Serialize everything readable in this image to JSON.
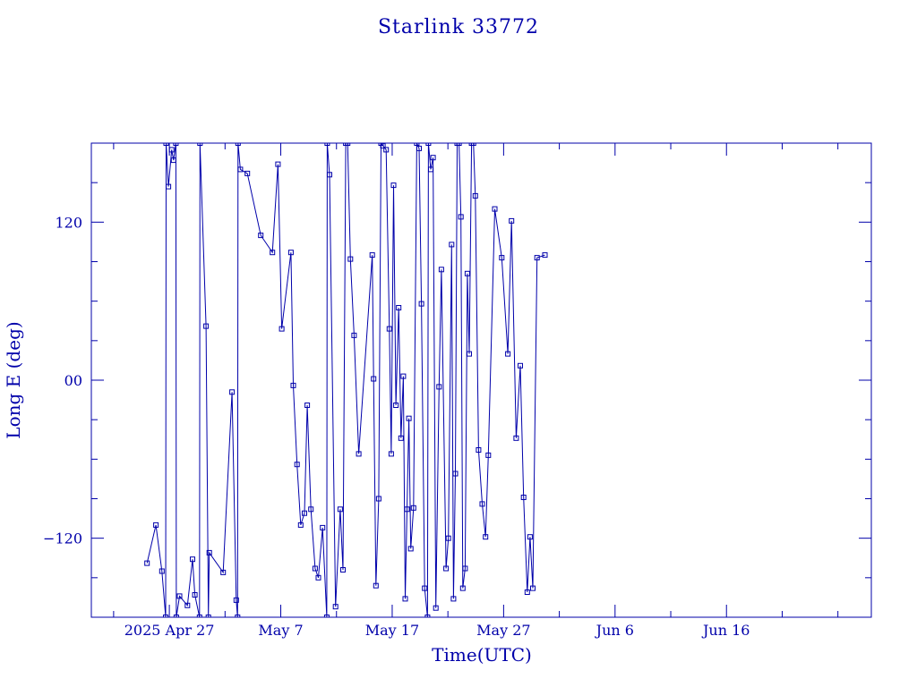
{
  "chart_data": {
    "type": "line",
    "title": "Starlink 33772",
    "xlabel": "Time(UTC)",
    "ylabel": "Long E (deg)",
    "ylim": [
      -180,
      180
    ],
    "xlim": [
      "2025-04-20",
      "2025-06-29"
    ],
    "x_ticks": [
      {
        "date": "2025-04-27",
        "label": "2025 Apr 27"
      },
      {
        "date": "2025-05-07",
        "label": "May  7"
      },
      {
        "date": "2025-05-17",
        "label": "May 17"
      },
      {
        "date": "2025-05-27",
        "label": "May 27"
      },
      {
        "date": "2025-06-06",
        "label": "Jun  6"
      },
      {
        "date": "2025-06-16",
        "label": "Jun 16"
      }
    ],
    "y_ticks": [
      {
        "value": 120,
        "label": "120"
      },
      {
        "value": 0,
        "label": "00"
      },
      {
        "value": -120,
        "label": "−120"
      }
    ],
    "grid": false,
    "line_color": "#0000aa",
    "series": [
      {
        "points": [
          [
            "2025-04-25 00:00",
            -139
          ],
          [
            "2025-04-25 19:00",
            -110
          ],
          [
            "2025-04-26 08:00",
            -145
          ],
          [
            "2025-04-26 16:00",
            -180
          ],
          [
            "2025-04-26 17:00",
            180
          ],
          [
            "2025-04-26 22:00",
            147
          ],
          [
            "2025-04-27 05:00",
            175
          ],
          [
            "2025-04-27 09:00",
            167
          ],
          [
            "2025-04-27 14:00",
            180
          ],
          [
            "2025-04-27 15:00",
            -180
          ],
          [
            "2025-04-27 22:00",
            -164
          ],
          [
            "2025-04-28 15:00",
            -171
          ],
          [
            "2025-04-29 02:00",
            -136
          ],
          [
            "2025-04-29 07:00",
            -163
          ],
          [
            "2025-04-29 17:00",
            -180
          ],
          [
            "2025-04-29 18:00",
            180
          ],
          [
            "2025-04-30 07:00",
            41
          ],
          [
            "2025-04-30 12:00",
            -180
          ],
          [
            "2025-04-30 14:00",
            -131
          ],
          [
            "2025-05-01 20:00",
            -146
          ],
          [
            "2025-05-02 15:00",
            -9
          ],
          [
            "2025-05-03 00:00",
            -167
          ],
          [
            "2025-05-03 03:00",
            -180
          ],
          [
            "2025-05-03 04:00",
            180
          ],
          [
            "2025-05-03 09:00",
            160
          ],
          [
            "2025-05-04 00:00",
            157
          ],
          [
            "2025-05-05 05:00",
            110
          ],
          [
            "2025-05-06 06:00",
            97
          ],
          [
            "2025-05-06 18:00",
            164
          ],
          [
            "2025-05-07 02:00",
            39
          ],
          [
            "2025-05-07 22:00",
            97
          ],
          [
            "2025-05-08 03:00",
            -4
          ],
          [
            "2025-05-08 11:00",
            -64
          ],
          [
            "2025-05-08 19:00",
            -110
          ],
          [
            "2025-05-09 03:00",
            -101
          ],
          [
            "2025-05-09 09:00",
            -19
          ],
          [
            "2025-05-09 17:00",
            -98
          ],
          [
            "2025-05-10 02:00",
            -143
          ],
          [
            "2025-05-10 09:00",
            -150
          ],
          [
            "2025-05-10 18:00",
            -112
          ],
          [
            "2025-05-11 03:00",
            -180
          ],
          [
            "2025-05-11 04:00",
            180
          ],
          [
            "2025-05-11 09:00",
            156
          ],
          [
            "2025-05-11 22:00",
            -172
          ],
          [
            "2025-05-12 08:00",
            -98
          ],
          [
            "2025-05-12 14:00",
            -144
          ],
          [
            "2025-05-12 20:00",
            180
          ],
          [
            "2025-05-13 00:00",
            180
          ],
          [
            "2025-05-13 06:00",
            92
          ],
          [
            "2025-05-13 14:00",
            34
          ],
          [
            "2025-05-14 00:00",
            -56
          ],
          [
            "2025-05-15 05:00",
            95
          ],
          [
            "2025-05-15 08:00",
            1
          ],
          [
            "2025-05-15 13:00",
            -156
          ],
          [
            "2025-05-15 19:00",
            -90
          ],
          [
            "2025-05-16 00:00",
            180
          ],
          [
            "2025-05-16 04:00",
            178
          ],
          [
            "2025-05-16 11:00",
            175
          ],
          [
            "2025-05-16 18:00",
            39
          ],
          [
            "2025-05-16 22:00",
            -56
          ],
          [
            "2025-05-17 03:00",
            148
          ],
          [
            "2025-05-17 08:00",
            -19
          ],
          [
            "2025-05-17 14:00",
            55
          ],
          [
            "2025-05-17 19:00",
            -44
          ],
          [
            "2025-05-18 00:00",
            3
          ],
          [
            "2025-05-18 04:00",
            -166
          ],
          [
            "2025-05-18 08:00",
            -98
          ],
          [
            "2025-05-18 12:00",
            -29
          ],
          [
            "2025-05-18 16:00",
            -128
          ],
          [
            "2025-05-18 22:00",
            -97
          ],
          [
            "2025-05-19 05:00",
            180
          ],
          [
            "2025-05-19 10:00",
            176
          ],
          [
            "2025-05-19 15:00",
            58
          ],
          [
            "2025-05-19 22:00",
            -158
          ],
          [
            "2025-05-20 04:00",
            -180
          ],
          [
            "2025-05-20 06:00",
            180
          ],
          [
            "2025-05-20 11:00",
            160
          ],
          [
            "2025-05-20 16:00",
            169
          ],
          [
            "2025-05-20 22:00",
            -173
          ],
          [
            "2025-05-21 05:00",
            -5
          ],
          [
            "2025-05-21 10:00",
            84
          ],
          [
            "2025-05-21 20:00",
            -143
          ],
          [
            "2025-05-22 01:00",
            -120
          ],
          [
            "2025-05-22 08:00",
            103
          ],
          [
            "2025-05-22 12:00",
            -166
          ],
          [
            "2025-05-22 16:00",
            -71
          ],
          [
            "2025-05-22 20:00",
            180
          ],
          [
            "2025-05-23 00:00",
            180
          ],
          [
            "2025-05-23 04:00",
            124
          ],
          [
            "2025-05-23 08:00",
            -158
          ],
          [
            "2025-05-23 13:00",
            -143
          ],
          [
            "2025-05-23 18:00",
            81
          ],
          [
            "2025-05-23 22:00",
            20
          ],
          [
            "2025-05-24 03:00",
            180
          ],
          [
            "2025-05-24 07:00",
            180
          ],
          [
            "2025-05-24 11:00",
            140
          ],
          [
            "2025-05-24 18:00",
            -53
          ],
          [
            "2025-05-25 02:00",
            -94
          ],
          [
            "2025-05-25 09:00",
            -119
          ],
          [
            "2025-05-25 15:00",
            -57
          ],
          [
            "2025-05-26 05:00",
            130
          ],
          [
            "2025-05-26 20:00",
            93
          ],
          [
            "2025-05-27 09:00",
            20
          ],
          [
            "2025-05-27 17:00",
            121
          ],
          [
            "2025-05-28 03:00",
            -44
          ],
          [
            "2025-05-28 12:00",
            11
          ],
          [
            "2025-05-28 19:00",
            -89
          ],
          [
            "2025-05-29 03:00",
            -161
          ],
          [
            "2025-05-29 09:00",
            -119
          ],
          [
            "2025-05-29 15:00",
            -158
          ],
          [
            "2025-05-30 00:00",
            93
          ],
          [
            "2025-05-30 17:00",
            95
          ]
        ]
      }
    ]
  }
}
